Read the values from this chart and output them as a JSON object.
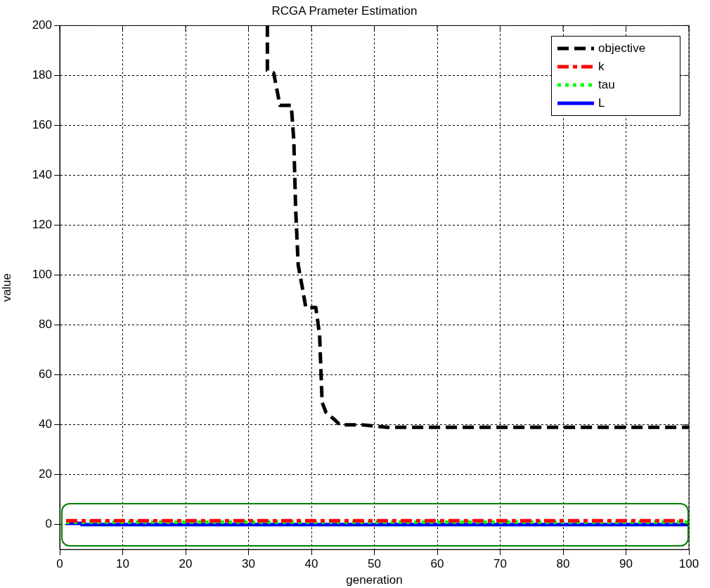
{
  "chart_data": {
    "type": "line",
    "title": "RCGA Prameter Estimation",
    "xlabel": "generation",
    "ylabel": "value",
    "xlim": [
      0,
      100
    ],
    "xticks": [
      0,
      10,
      20,
      30,
      40,
      50,
      60,
      70,
      80,
      90,
      100
    ],
    "ylim": [
      -10,
      200
    ],
    "yticks": [
      0,
      20,
      40,
      60,
      80,
      100,
      120,
      140,
      160,
      180,
      200
    ],
    "grid": true,
    "legend": "top right",
    "marker": "none",
    "series": [
      {
        "name": "objective",
        "color": "#000000",
        "line_style": "dashed",
        "x": [
          33,
          33,
          34,
          35,
          36.8,
          37.2,
          37.5,
          37.9,
          38.7,
          39.1,
          40.7,
          41.3,
          41.7,
          42.3,
          43.7,
          44.5,
          48,
          50,
          52,
          100
        ],
        "values": [
          200,
          182,
          181,
          168,
          168,
          154,
          126,
          104,
          93,
          87,
          87,
          76,
          49,
          45,
          42,
          40,
          40,
          39.5,
          39,
          39
        ]
      },
      {
        "name": "k",
        "color": "#ff0000",
        "line_style": "dashdot",
        "x": [
          1,
          100
        ],
        "values": [
          1.5,
          1.5
        ]
      },
      {
        "name": "tau",
        "color": "#00ff00",
        "line_style": "dotted",
        "x": [
          1,
          100
        ],
        "values": [
          1,
          1
        ]
      },
      {
        "name": "L",
        "color": "#0000ff",
        "line_style": "solid",
        "x": [
          1,
          3.5,
          3.5,
          100
        ],
        "values": [
          0.5,
          0.5,
          0,
          0
        ]
      }
    ]
  }
}
